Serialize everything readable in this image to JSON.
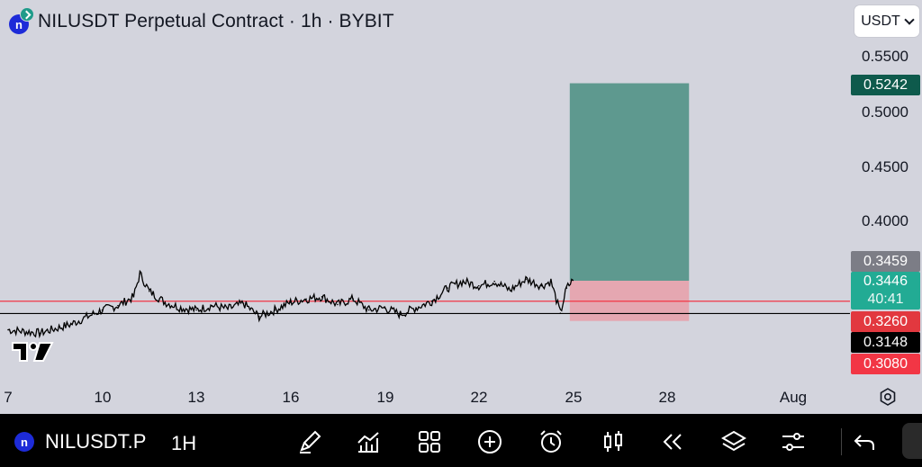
{
  "header": {
    "title": "NILUSDT Perpetual Contract · 1h · BYBIT",
    "logo_letter": "n",
    "currency": "USDT"
  },
  "price_axis": {
    "ticks": [
      "0.5500",
      "0.5000",
      "0.4500",
      "0.4000"
    ],
    "labels": {
      "target": "0.5242",
      "prev_close": "0.3459",
      "last_price": "0.3446",
      "countdown": "40:41",
      "red_level": "0.3260",
      "black_level": "0.3148",
      "stop": "0.3080"
    }
  },
  "time_axis": {
    "ticks": [
      "7",
      "10",
      "13",
      "16",
      "19",
      "22",
      "25",
      "28",
      "Aug"
    ]
  },
  "colors": {
    "background": "#d3d4dd",
    "up": "#22ab94",
    "target_zone": "#5e998f",
    "stop_zone": "#e5a7b1",
    "red_line": "#f23645",
    "black_line": "#000000",
    "prev_close_label": "#7c7d86",
    "target_label": "#0e5a4c",
    "red_label": "#e2383f",
    "stop_label": "#f23645"
  },
  "chart_data": {
    "type": "line",
    "title": "NILUSDT Perpetual Contract · 1h · BYBIT",
    "x_unit": "date (July)",
    "ylim": [
      0.29,
      0.565
    ],
    "x": [
      7,
      8,
      9,
      10,
      10.5,
      11,
      11.2,
      11.5,
      12,
      12.5,
      13,
      13.5,
      14,
      14.5,
      15,
      15.5,
      16,
      16.5,
      17,
      17.5,
      18,
      18.5,
      19,
      19.5,
      20,
      20.5,
      21,
      21.5,
      22,
      22.5,
      23,
      23.5,
      24,
      24.3,
      24.6,
      24.8,
      25
    ],
    "values": [
      0.3,
      0.297,
      0.305,
      0.318,
      0.322,
      0.33,
      0.351,
      0.335,
      0.325,
      0.32,
      0.318,
      0.322,
      0.319,
      0.324,
      0.312,
      0.318,
      0.325,
      0.328,
      0.33,
      0.323,
      0.328,
      0.318,
      0.32,
      0.314,
      0.32,
      0.326,
      0.338,
      0.344,
      0.34,
      0.344,
      0.336,
      0.346,
      0.34,
      0.344,
      0.315,
      0.338,
      0.345
    ],
    "horizontal_lines": [
      {
        "value": 0.326,
        "color": "#f23645"
      },
      {
        "value": 0.3148,
        "color": "#000000"
      }
    ],
    "position": {
      "entry": 0.3446,
      "target": 0.5242,
      "stop": 0.308,
      "start_x": 24.9,
      "end_x": 28.7
    },
    "grid": false
  }
}
